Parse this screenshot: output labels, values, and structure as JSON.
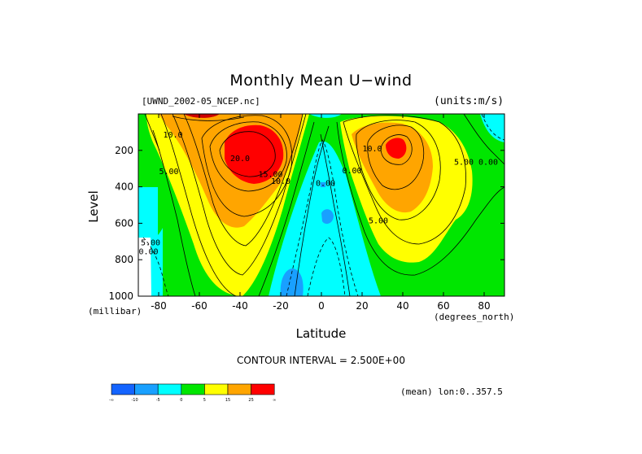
{
  "chart_data": {
    "type": "heatmap",
    "title": "Monthly Mean U−wind",
    "dataset": "[UWND_2002-05_NCEP.nc]",
    "units": "(units:m/s)",
    "xlabel": "Latitude",
    "x_unit": "(degrees_north)",
    "ylabel": "Level",
    "y_unit": "(millibar)",
    "x_range": [
      -90,
      90
    ],
    "y_range": [
      1000,
      0
    ],
    "x_ticks": [
      -80,
      -60,
      -40,
      -20,
      0,
      20,
      40,
      60,
      80
    ],
    "y_ticks": [
      200,
      400,
      600,
      800,
      1000
    ],
    "contour_interval_text": "CONTOUR INTERVAL = 2.500E+00",
    "contour_interval": 2.5,
    "averaging_note": "(mean) lon:0..357.5",
    "contour_labels": [
      "10.0",
      "5.00",
      "20.0",
      "15.00",
      "10.0",
      "5.00",
      "0.00",
      "0.00",
      "10.0",
      "5.00",
      "5.00",
      "0.00",
      "0.00"
    ],
    "colorbar": {
      "bins": [
        {
          "label": "-∞",
          "color": "#1464ff"
        },
        {
          "label": "-10",
          "color": "#19a0ff"
        },
        {
          "label": "-5",
          "color": "#00ffff"
        },
        {
          "label": "0",
          "color": "#00e600"
        },
        {
          "label": "5",
          "color": "#ffff00"
        },
        {
          "label": "15",
          "color": "#ffa500"
        },
        {
          "label": "25",
          "color": "#ff0000"
        }
      ],
      "end_label": "∞"
    },
    "features": [
      {
        "name": "southern-hemisphere-jet-core",
        "latitude": -30,
        "level": 200,
        "value": 30
      },
      {
        "name": "northern-hemisphere-jet-core",
        "latitude": 37,
        "level": 200,
        "value": 27
      },
      {
        "name": "equatorial-easterlies",
        "latitude": 0,
        "level": 400,
        "value": -5
      },
      {
        "name": "near-surface-easterlies",
        "latitude": -15,
        "level": 900,
        "value": -8
      }
    ]
  }
}
